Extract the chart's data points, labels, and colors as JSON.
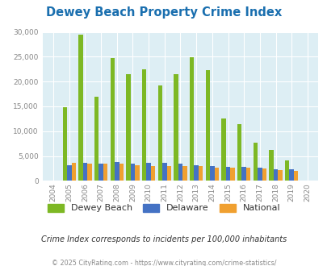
{
  "title": "Dewey Beach Property Crime Index",
  "years": [
    2004,
    2005,
    2006,
    2007,
    2008,
    2009,
    2010,
    2011,
    2012,
    2013,
    2014,
    2015,
    2016,
    2017,
    2018,
    2019,
    2020
  ],
  "dewey_beach": [
    0,
    14800,
    29500,
    16900,
    24800,
    21500,
    22400,
    19300,
    21500,
    24900,
    22300,
    12500,
    11400,
    7700,
    6200,
    4100,
    0
  ],
  "delaware": [
    0,
    3200,
    3700,
    3400,
    3800,
    3400,
    3700,
    3600,
    3400,
    3200,
    3000,
    2800,
    2800,
    2600,
    2400,
    2300,
    0
  ],
  "national": [
    0,
    3600,
    3400,
    3400,
    3400,
    3200,
    3000,
    3000,
    3000,
    3000,
    2700,
    2600,
    2600,
    2500,
    2200,
    2000,
    0
  ],
  "color_dewey": "#7db824",
  "color_delaware": "#4472c4",
  "color_national": "#f0a030",
  "bg_color": "#ddeef4",
  "ylim": [
    0,
    30000
  ],
  "yticks": [
    0,
    5000,
    10000,
    15000,
    20000,
    25000,
    30000
  ],
  "subtitle": "Crime Index corresponds to incidents per 100,000 inhabitants",
  "footer": "© 2025 CityRating.com - https://www.cityrating.com/crime-statistics/",
  "title_color": "#1a6faf",
  "subtitle_color": "#333333",
  "footer_color": "#888888"
}
